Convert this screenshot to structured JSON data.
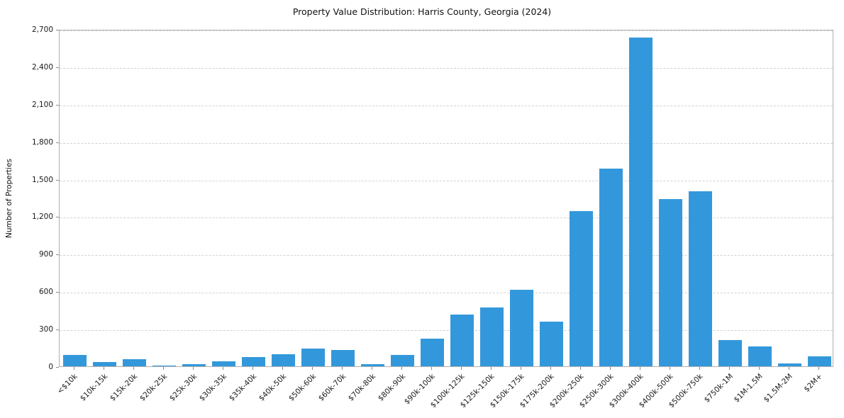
{
  "chart_data": {
    "type": "bar",
    "title": "Property Value Distribution: Harris County, Georgia (2024)",
    "xlabel": "",
    "ylabel": "Number of Properties",
    "ylim": [
      0,
      2700
    ],
    "ytick_step": 300,
    "grid": true,
    "grid_style": "dashed-horizontal",
    "legend": "none",
    "bar_color": "#3398db",
    "categories": [
      "<$10k",
      "$10k-15k",
      "$15k-20k",
      "$20k-25k",
      "$25k-30k",
      "$30k-35k",
      "$35k-40k",
      "$40k-50k",
      "$50k-60k",
      "$60k-70k",
      "$70k-80k",
      "$80k-90k",
      "$90k-100k",
      "$100k-125k",
      "$125k-150k",
      "$150k-175k",
      "$175k-200k",
      "$200k-250k",
      "$250k-300k",
      "$300k-400k",
      "$400k-500k",
      "$500k-750k",
      "$750k-1M",
      "$1M-1.5M",
      "$1.5M-2M",
      "$2M+"
    ],
    "values": [
      90,
      35,
      55,
      5,
      15,
      40,
      75,
      95,
      140,
      130,
      15,
      90,
      220,
      415,
      470,
      610,
      360,
      1240,
      1580,
      2630,
      1340,
      1400,
      210,
      160,
      25,
      80
    ]
  }
}
